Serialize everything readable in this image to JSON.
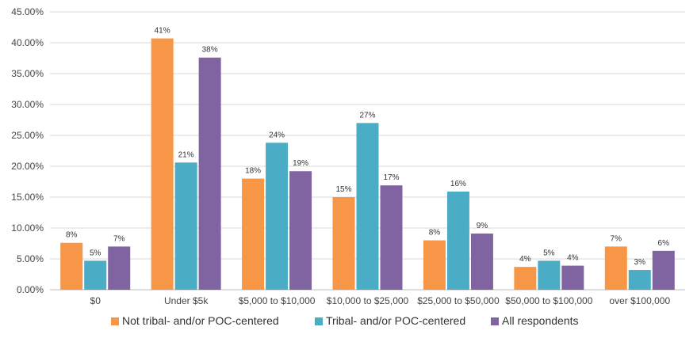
{
  "chart_data": {
    "type": "bar",
    "title": "",
    "xlabel": "",
    "ylabel": "",
    "ylim": [
      0,
      45
    ],
    "ytick_step": 5,
    "ytick_labels": [
      "0.00%",
      "5.00%",
      "10.00%",
      "15.00%",
      "20.00%",
      "25.00%",
      "30.00%",
      "35.00%",
      "40.00%",
      "45.00%"
    ],
    "grid": true,
    "legend_position": "bottom",
    "categories": [
      "$0",
      "Under $5k",
      "$5,000 to $10,000",
      "$10,000 to $25,000",
      "$25,000 to $50,000",
      "$50,000 to $100,000",
      "over $100,000"
    ],
    "series": [
      {
        "name": "Not tribal- and/or POC-centered",
        "color": "#F79646",
        "values": [
          7.6,
          40.7,
          18.0,
          15.0,
          8.0,
          3.7,
          7.0
        ],
        "labels": [
          "8%",
          "41%",
          "18%",
          "15%",
          "8%",
          "4%",
          "7%"
        ]
      },
      {
        "name": "Tribal- and/or POC-centered",
        "color": "#4BACC6",
        "values": [
          4.7,
          20.6,
          23.8,
          27.0,
          15.9,
          4.7,
          3.2
        ],
        "labels": [
          "5%",
          "21%",
          "24%",
          "27%",
          "16%",
          "5%",
          "3%"
        ]
      },
      {
        "name": "All respondents",
        "color": "#8064A2",
        "values": [
          7.0,
          37.6,
          19.2,
          16.9,
          9.1,
          3.9,
          6.3
        ],
        "labels": [
          "7%",
          "38%",
          "19%",
          "17%",
          "9%",
          "4%",
          "6%"
        ]
      }
    ]
  }
}
